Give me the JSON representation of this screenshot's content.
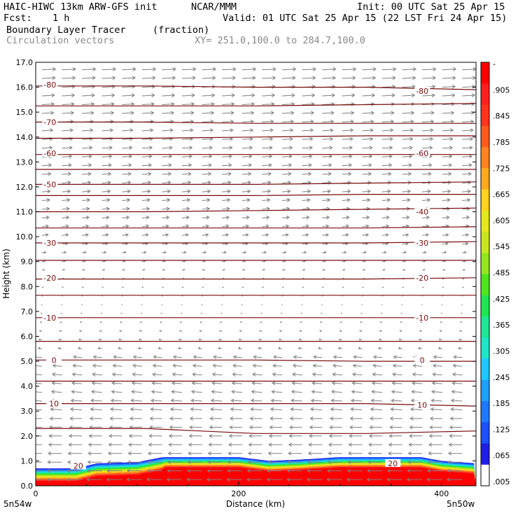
{
  "header": {
    "model": "HAIC-HIWC 13km ARW-GFS init",
    "org": "NCAR/MMM",
    "init": "Init: 00 UTC Sat 25 Apr 15",
    "fcst_label": "Fcst:",
    "fcst_value": "1 h",
    "valid": "Valid: 01 UTC Sat 25 Apr 15 (22 LST Fri 24 Apr 15)",
    "field": "Boundary Layer Tracer",
    "units": "(fraction)",
    "vectors": "Circulation vectors",
    "xy": "XY= 251.0,100.0 to 284.7,100.0"
  },
  "axes": {
    "ylabel": "Height (km)",
    "xlabel": "Distance (km)",
    "left_end": "5n54w",
    "right_end": "5n50w"
  },
  "colors": {
    "contour": "#7a0a0a",
    "vector": "#808080",
    "tracer_scale": [
      "#ffffff",
      "#1e1ee6",
      "#1e50ff",
      "#1e78ff",
      "#1ea0ff",
      "#1ec8ff",
      "#1ee6c8",
      "#1ee696",
      "#1ee650",
      "#50e61e",
      "#96e61e",
      "#c8e61e",
      "#e6e61e",
      "#ffd21e",
      "#ffaa1e",
      "#ff821e",
      "#ff5a1e",
      "#ff321e",
      "#ff1e1e",
      "#ff0000"
    ]
  },
  "chart_data": {
    "type": "cross-section",
    "x": {
      "label": "Distance (km)",
      "range": [
        0,
        434
      ],
      "ticks": [
        0,
        200,
        400
      ],
      "tick_labels": [
        "0",
        "200",
        "400"
      ]
    },
    "y": {
      "label": "Height (km)",
      "range": [
        0,
        17
      ],
      "ticks": [
        0,
        1,
        2,
        3,
        4,
        5,
        6,
        7,
        8,
        9,
        10,
        11,
        12,
        13,
        14,
        15,
        16,
        17
      ],
      "tick_labels": [
        "0.0",
        "1.0",
        "2.0",
        "3.0",
        "4.0",
        "5.0",
        "6.0",
        "7.0",
        "8.0",
        "9.0",
        "10.0",
        "11.0",
        "12.0",
        "13.0",
        "14.0",
        "15.0",
        "16.0",
        "17.0"
      ]
    },
    "colorbar": {
      "labels": [
        "-",
        ".905",
        ".845",
        ".785",
        ".725",
        ".665",
        ".605",
        ".545",
        ".485",
        ".425",
        ".365",
        ".305",
        ".245",
        ".185",
        ".125",
        ".065",
        ".005"
      ]
    },
    "temperature_contours": [
      {
        "value": 10,
        "heights_km": [
          2.3,
          2.3,
          2.1,
          2.1,
          2.2
        ]
      },
      {
        "value": 10,
        "heights_km": [
          3.3,
          3.3,
          3.3,
          3.3,
          3.2
        ]
      },
      {
        "value": 0,
        "heights_km": [
          4.2,
          4.2,
          4.2,
          4.2,
          4.2
        ]
      },
      {
        "value": 0,
        "heights_km": [
          5.05,
          5.05,
          5.05,
          5.0,
          5.0
        ]
      },
      {
        "value": -10,
        "heights_km": [
          5.8,
          5.8,
          5.8,
          5.8,
          5.8
        ]
      },
      {
        "value": -10,
        "heights_km": [
          6.75,
          6.75,
          6.75,
          6.75,
          6.75
        ]
      },
      {
        "value": -20,
        "heights_km": [
          7.65,
          7.65,
          7.65,
          7.65,
          7.65
        ]
      },
      {
        "value": -20,
        "heights_km": [
          8.3,
          8.3,
          8.3,
          8.3,
          8.35
        ]
      },
      {
        "value": -30,
        "heights_km": [
          9.05,
          9.05,
          9.05,
          9.05,
          9.05
        ]
      },
      {
        "value": -30,
        "heights_km": [
          9.75,
          9.75,
          9.75,
          9.75,
          9.8
        ]
      },
      {
        "value": -40,
        "heights_km": [
          10.35,
          10.35,
          10.35,
          10.35,
          10.4
        ]
      },
      {
        "value": -40,
        "heights_km": [
          11.0,
          11.0,
          11.05,
          11.1,
          11.15
        ]
      },
      {
        "value": -50,
        "heights_km": [
          11.65,
          11.65,
          11.65,
          11.7,
          11.7
        ]
      },
      {
        "value": -50,
        "heights_km": [
          12.1,
          12.1,
          12.1,
          12.15,
          12.2
        ]
      },
      {
        "value": -60,
        "heights_km": [
          12.7,
          12.7,
          12.7,
          12.7,
          12.7
        ]
      },
      {
        "value": -60,
        "heights_km": [
          13.3,
          13.3,
          13.3,
          13.3,
          13.3
        ]
      },
      {
        "value": -70,
        "heights_km": [
          13.95,
          13.95,
          14.0,
          14.05,
          14.05
        ]
      },
      {
        "value": -70,
        "heights_km": [
          14.6,
          14.6,
          14.55,
          14.55,
          14.55
        ]
      },
      {
        "value": -80,
        "heights_km": [
          15.25,
          15.25,
          15.25,
          15.3,
          15.35
        ]
      },
      {
        "value": -80,
        "heights_km": [
          16.05,
          16.05,
          16.0,
          16.0,
          15.9
        ]
      }
    ],
    "contour_labels": [
      {
        "text": "-80",
        "x_km": 14,
        "y_km": 16.1
      },
      {
        "text": "-80",
        "x_km": 381,
        "y_km": 15.85
      },
      {
        "text": "-70",
        "x_km": 14,
        "y_km": 14.6
      },
      {
        "text": "-60",
        "x_km": 14,
        "y_km": 13.35
      },
      {
        "text": "-60",
        "x_km": 381,
        "y_km": 13.35
      },
      {
        "text": "-50",
        "x_km": 14,
        "y_km": 12.1
      },
      {
        "text": "-40",
        "x_km": 381,
        "y_km": 11.0
      },
      {
        "text": "-30",
        "x_km": 14,
        "y_km": 9.75
      },
      {
        "text": "-30",
        "x_km": 381,
        "y_km": 9.75
      },
      {
        "text": "-20",
        "x_km": 14,
        "y_km": 8.35
      },
      {
        "text": "-20",
        "x_km": 381,
        "y_km": 8.35
      },
      {
        "text": "-10",
        "x_km": 14,
        "y_km": 6.75
      },
      {
        "text": "-10",
        "x_km": 381,
        "y_km": 6.75
      },
      {
        "text": "0",
        "x_km": 18,
        "y_km": 5.05
      },
      {
        "text": "0",
        "x_km": 381,
        "y_km": 5.05
      },
      {
        "text": "10",
        "x_km": 18,
        "y_km": 3.3
      },
      {
        "text": "10",
        "x_km": 381,
        "y_km": 3.25
      },
      {
        "text": "20",
        "x_km": 42,
        "y_km": 0.8
      },
      {
        "text": "20",
        "x_km": 352,
        "y_km": 0.9
      }
    ],
    "tracer_top_km": [
      {
        "x_km": 0,
        "top": 0.7
      },
      {
        "x_km": 40,
        "top": 0.7
      },
      {
        "x_km": 60,
        "top": 0.9
      },
      {
        "x_km": 100,
        "top": 0.95
      },
      {
        "x_km": 125,
        "top": 1.15
      },
      {
        "x_km": 200,
        "top": 1.15
      },
      {
        "x_km": 230,
        "top": 1.0
      },
      {
        "x_km": 260,
        "top": 1.05
      },
      {
        "x_km": 300,
        "top": 1.15
      },
      {
        "x_km": 380,
        "top": 1.15
      },
      {
        "x_km": 400,
        "top": 1.0
      },
      {
        "x_km": 434,
        "top": 0.9
      }
    ],
    "vectors": {
      "rows_km_step": 0.35,
      "columns": 22,
      "easterly_below_km": 5.2,
      "westerly_above_km": 9.5
    }
  }
}
